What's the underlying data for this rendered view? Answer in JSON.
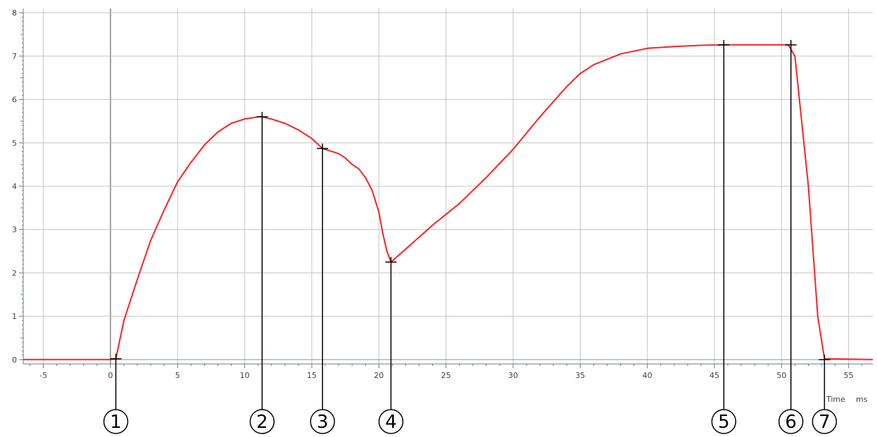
{
  "chart_data": {
    "type": "line",
    "title": "",
    "xlabel": "Time",
    "x_unit": "ms",
    "ylabel": "",
    "xlim": [
      -6.5,
      56.8
    ],
    "ylim": [
      -0.1,
      8.1
    ],
    "x_ticks": [
      -5,
      0,
      5,
      10,
      15,
      20,
      25,
      30,
      35,
      40,
      45,
      50,
      55
    ],
    "x_tick_labels": [
      "-5",
      "0",
      "5",
      "10",
      "15",
      "20",
      "25",
      "30",
      "35",
      "40",
      "45",
      "50",
      "55"
    ],
    "y_ticks": [
      0,
      1,
      2,
      3,
      4,
      5,
      6,
      7,
      8
    ],
    "y_tick_labels": [
      "0",
      "1",
      "2",
      "3",
      "4",
      "5",
      "6",
      "7",
      "8"
    ],
    "grid": true,
    "series": [
      {
        "color": "#ff2020",
        "x": [
          -6.5,
          0.0,
          0.4,
          1,
          2,
          3,
          4,
          5,
          6,
          7,
          8,
          9,
          10,
          11,
          11.3,
          12,
          13,
          14,
          15,
          15.8,
          16.5,
          17,
          17.5,
          18,
          18.5,
          19,
          19.5,
          20,
          20.3,
          20.6,
          20.9,
          22,
          24,
          26,
          28,
          30,
          32,
          33,
          34,
          35,
          36,
          38,
          40,
          42,
          44,
          45.7,
          48,
          50.5,
          51,
          52,
          52.7,
          53.2,
          56.8
        ],
        "y": [
          0,
          0,
          0.02,
          0.9,
          1.85,
          2.75,
          3.45,
          4.1,
          4.55,
          4.95,
          5.25,
          5.45,
          5.55,
          5.6,
          5.6,
          5.55,
          5.45,
          5.3,
          5.1,
          4.87,
          4.8,
          4.75,
          4.65,
          4.5,
          4.4,
          4.2,
          3.9,
          3.4,
          2.9,
          2.5,
          2.25,
          2.55,
          3.1,
          3.6,
          4.2,
          4.85,
          5.6,
          5.95,
          6.3,
          6.6,
          6.8,
          7.05,
          7.18,
          7.22,
          7.25,
          7.26,
          7.26,
          7.26,
          7.0,
          4.0,
          1.0,
          0.02,
          0
        ]
      }
    ],
    "markers": [
      {
        "label": "1",
        "x": 0.4,
        "y": 0.02
      },
      {
        "label": "2",
        "x": 11.3,
        "y": 5.6
      },
      {
        "label": "3",
        "x": 15.8,
        "y": 4.87
      },
      {
        "label": "4",
        "x": 20.9,
        "y": 2.25
      },
      {
        "label": "5",
        "x": 45.7,
        "y": 7.26
      },
      {
        "label": "6",
        "x": 50.7,
        "y": 7.26
      },
      {
        "label": "7",
        "x": 53.2,
        "y": 0
      }
    ]
  },
  "colors": {
    "line": "#ff2020",
    "grid": "#c4c4c4",
    "axis": "#6a7a90",
    "marker": "#000000"
  }
}
